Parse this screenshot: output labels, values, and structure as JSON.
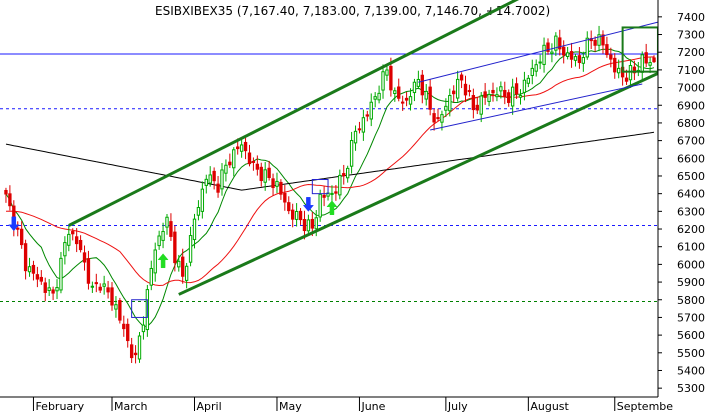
{
  "chart_data": {
    "type": "candlestick",
    "title": "ESIBXIBEX35 (7,167.40, 7,183.00, 7,139.00, 7,146.70, +14.7002)",
    "ylim": [
      5250,
      7450
    ],
    "y_ticks": [
      5300,
      5400,
      5500,
      5600,
      5700,
      5800,
      5900,
      6000,
      6100,
      6200,
      6300,
      6400,
      6500,
      6600,
      6700,
      6800,
      6900,
      7000,
      7100,
      7200,
      7300,
      7400
    ],
    "x_ticks": [
      "February",
      "March",
      "April",
      "May",
      "June",
      "July",
      "August",
      "Septembe"
    ],
    "x_tick_days": [
      7,
      27,
      48,
      69,
      90,
      112,
      133,
      155
    ],
    "n_days": 166,
    "last": {
      "open": 7167.4,
      "high": 7183.0,
      "low": 7139.0,
      "close": 7146.7,
      "change": 14.7002
    },
    "key_closes": [
      [
        0,
        6380
      ],
      [
        3,
        6180
      ],
      [
        5,
        6000
      ],
      [
        8,
        5920
      ],
      [
        12,
        5820
      ],
      [
        16,
        6200
      ],
      [
        19,
        6080
      ],
      [
        22,
        5850
      ],
      [
        24,
        5900
      ],
      [
        28,
        5760
      ],
      [
        31,
        5560
      ],
      [
        33,
        5460
      ],
      [
        35,
        5700
      ],
      [
        38,
        6100
      ],
      [
        41,
        6250
      ],
      [
        43,
        6050
      ],
      [
        45,
        5920
      ],
      [
        48,
        6250
      ],
      [
        51,
        6500
      ],
      [
        54,
        6450
      ],
      [
        57,
        6600
      ],
      [
        60,
        6680
      ],
      [
        63,
        6550
      ],
      [
        66,
        6500
      ],
      [
        69,
        6450
      ],
      [
        72,
        6300
      ],
      [
        75,
        6250
      ],
      [
        78,
        6200
      ],
      [
        80,
        6380
      ],
      [
        83,
        6400
      ],
      [
        86,
        6500
      ],
      [
        89,
        6750
      ],
      [
        92,
        6850
      ],
      [
        95,
        7000
      ],
      [
        97,
        7100
      ],
      [
        99,
        6950
      ],
      [
        102,
        6920
      ],
      [
        105,
        7050
      ],
      [
        108,
        6880
      ],
      [
        110,
        6800
      ],
      [
        113,
        6950
      ],
      [
        116,
        7050
      ],
      [
        119,
        6880
      ],
      [
        122,
        6950
      ],
      [
        125,
        6980
      ],
      [
        128,
        6950
      ],
      [
        131,
        6980
      ],
      [
        134,
        7100
      ],
      [
        137,
        7200
      ],
      [
        140,
        7250
      ],
      [
        143,
        7180
      ],
      [
        146,
        7150
      ],
      [
        149,
        7280
      ],
      [
        152,
        7250
      ],
      [
        155,
        7100
      ],
      [
        158,
        7060
      ],
      [
        160,
        7100
      ],
      [
        162,
        7150
      ],
      [
        165,
        7147
      ]
    ],
    "horizontal_lines": [
      {
        "value": 7190,
        "style": "solid",
        "color": "#1a1aff"
      },
      {
        "value": 6880,
        "style": "dashed",
        "color": "#1a1aff"
      },
      {
        "value": 6220,
        "style": "dashed",
        "color": "#1a1aff"
      },
      {
        "value": 5790,
        "style": "dashed",
        "color": "#008000"
      }
    ],
    "channels": [
      {
        "name": "outer-top",
        "color": "#1a7a1a",
        "from": [
          16,
          6220
        ],
        "to": [
          132,
          7520
        ]
      },
      {
        "name": "outer-bottom",
        "color": "#1a7a1a",
        "from": [
          44,
          5830
        ],
        "to": [
          166,
          7080
        ]
      },
      {
        "name": "inner-top",
        "color": "#2222cc",
        "from": [
          105,
          7030
        ],
        "to": [
          166,
          7370
        ]
      },
      {
        "name": "inner-bottom",
        "color": "#2222cc",
        "from": [
          108,
          6760
        ],
        "to": [
          162,
          7020
        ]
      }
    ],
    "boxes": [
      {
        "color": "#2222cc",
        "day1": 32,
        "day2": 36,
        "v1": 5700,
        "v2": 5800
      },
      {
        "color": "#2222cc",
        "day1": 78,
        "day2": 82,
        "v1": 6400,
        "v2": 6480
      },
      {
        "color": "#1a7a1a",
        "day1": 157,
        "day2": 166,
        "v1": 7090,
        "v2": 7340
      }
    ],
    "arrows": [
      {
        "direction": "down",
        "color": "#1a3aff",
        "day": 2,
        "value": 6190
      },
      {
        "direction": "up",
        "color": "#22dd22",
        "day": 40,
        "value": 6060
      },
      {
        "direction": "down",
        "color": "#1a3aff",
        "day": 77,
        "value": 6300
      },
      {
        "direction": "up",
        "color": "#22dd22",
        "day": 83,
        "value": 6360
      }
    ],
    "colors": {
      "up": "#00aa00",
      "down": "#dd0000",
      "sma_fast": "#008800",
      "sma_mid": "#ee1111",
      "sma_slow": "#000000",
      "axis": "#000000"
    }
  }
}
